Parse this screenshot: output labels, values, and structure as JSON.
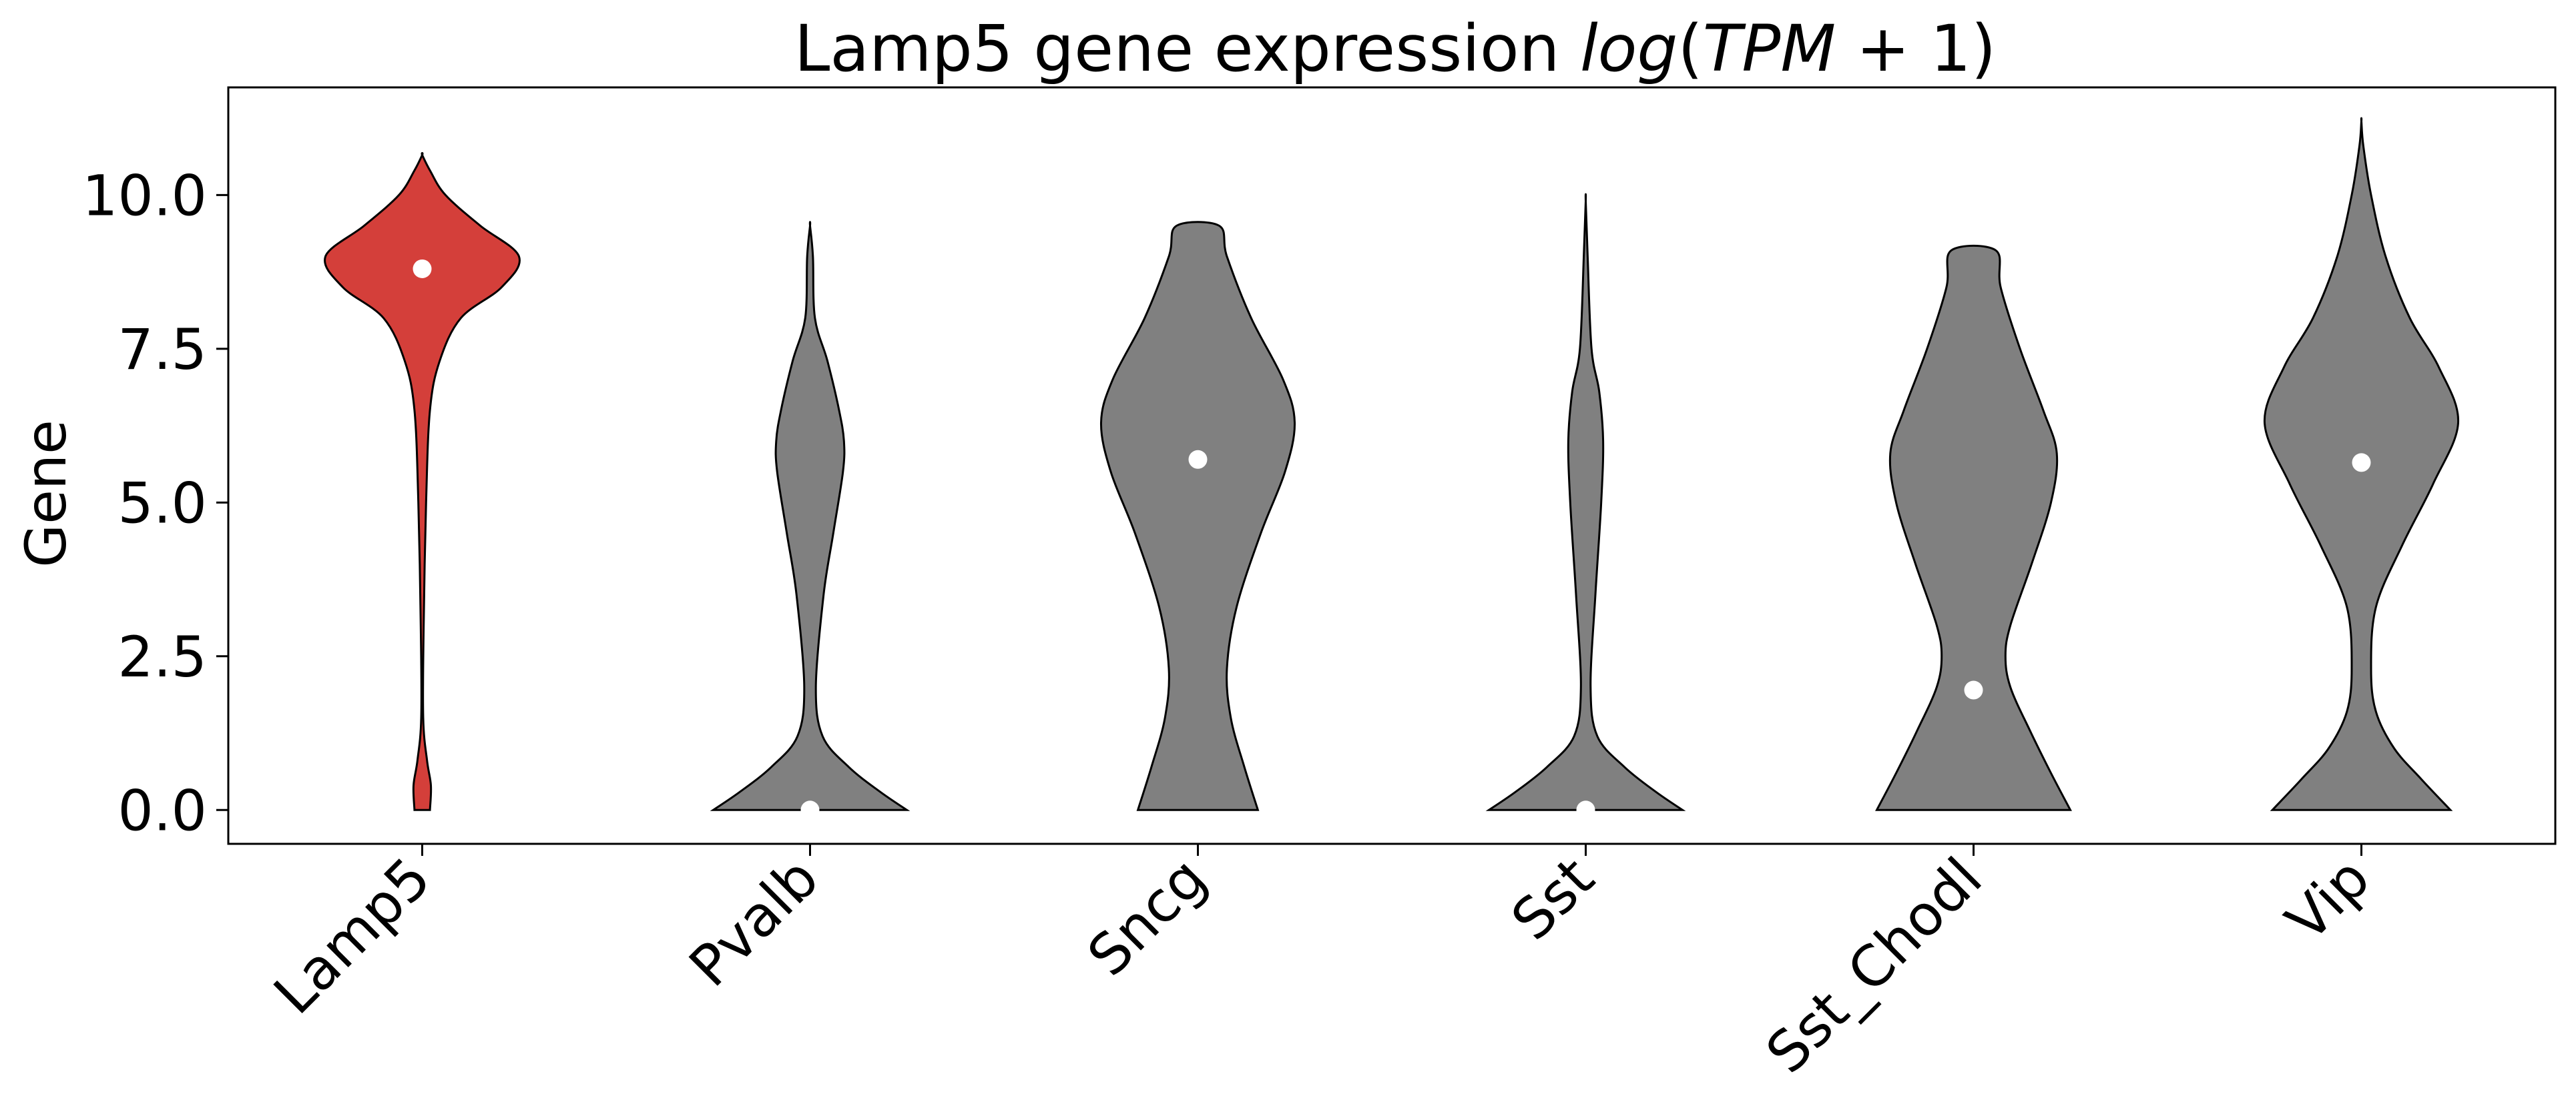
{
  "chart_data": {
    "type": "violin",
    "title": {
      "prefix": "Lamp5 gene expression ",
      "math": [
        "log",
        "(",
        "TPM",
        " + 1)"
      ]
    },
    "xlabel": "",
    "ylabel": "Gene",
    "ylim": [
      -0.55,
      11.75
    ],
    "yticks": [
      "0.0",
      "2.5",
      "5.0",
      "7.5",
      "10.0"
    ],
    "ytick_values": [
      0,
      2.5,
      5,
      7.5,
      10
    ],
    "categories": [
      "Lamp5",
      "Pvalb",
      "Sncg",
      "Sst",
      "Sst_Chodl",
      "Vip"
    ],
    "highlight_category": "Lamp5",
    "colors": {
      "highlight": "#d43f3a",
      "default": "#808080",
      "median": "#ffffff",
      "edge": "#000000"
    },
    "medians": [
      8.8,
      0.0,
      5.7,
      0.0,
      1.95,
      5.65
    ],
    "violins": [
      {
        "name": "Lamp5",
        "profile": [
          [
            0,
            0.08
          ],
          [
            0.4,
            0.09
          ],
          [
            0.8,
            0.05
          ],
          [
            1.5,
            0.01
          ],
          [
            3,
            0.015
          ],
          [
            5,
            0.04
          ],
          [
            6.5,
            0.08
          ],
          [
            7.3,
            0.18
          ],
          [
            8.0,
            0.4
          ],
          [
            8.5,
            0.82
          ],
          [
            9.0,
            1.0
          ],
          [
            9.5,
            0.6
          ],
          [
            10.0,
            0.24
          ],
          [
            10.4,
            0.08
          ],
          [
            10.65,
            0.0
          ]
        ]
      },
      {
        "name": "Pvalb",
        "profile": [
          [
            0,
            1.0
          ],
          [
            0.3,
            0.72
          ],
          [
            0.7,
            0.4
          ],
          [
            1.2,
            0.13
          ],
          [
            2,
            0.06
          ],
          [
            3.5,
            0.14
          ],
          [
            4.5,
            0.24
          ],
          [
            5.5,
            0.34
          ],
          [
            6.0,
            0.35
          ],
          [
            6.5,
            0.3
          ],
          [
            7.3,
            0.18
          ],
          [
            8.0,
            0.05
          ],
          [
            9.0,
            0.03
          ],
          [
            9.5,
            0.0
          ]
        ]
      },
      {
        "name": "Sncg",
        "profile": [
          [
            0,
            0.62
          ],
          [
            0.7,
            0.48
          ],
          [
            1.5,
            0.34
          ],
          [
            2.3,
            0.3
          ],
          [
            3.3,
            0.4
          ],
          [
            4.5,
            0.65
          ],
          [
            5.5,
            0.9
          ],
          [
            6.3,
            1.0
          ],
          [
            7.0,
            0.88
          ],
          [
            8.0,
            0.55
          ],
          [
            9.0,
            0.3
          ],
          [
            9.5,
            0.22
          ]
        ]
      },
      {
        "name": "Sst",
        "profile": [
          [
            0,
            1.0
          ],
          [
            0.3,
            0.72
          ],
          [
            0.7,
            0.4
          ],
          [
            1.2,
            0.12
          ],
          [
            2,
            0.05
          ],
          [
            3.5,
            0.1
          ],
          [
            5,
            0.16
          ],
          [
            6,
            0.18
          ],
          [
            6.8,
            0.14
          ],
          [
            7.5,
            0.06
          ],
          [
            9,
            0.02
          ],
          [
            9.9,
            0.0
          ]
        ]
      },
      {
        "name": "Sst_Chodl",
        "profile": [
          [
            0,
            1.0
          ],
          [
            0.6,
            0.8
          ],
          [
            1.3,
            0.58
          ],
          [
            2.0,
            0.38
          ],
          [
            2.5,
            0.33
          ],
          [
            3.0,
            0.38
          ],
          [
            4.0,
            0.6
          ],
          [
            5.0,
            0.8
          ],
          [
            5.8,
            0.86
          ],
          [
            6.5,
            0.72
          ],
          [
            7.5,
            0.48
          ],
          [
            8.5,
            0.28
          ],
          [
            9.1,
            0.23
          ]
        ]
      },
      {
        "name": "Vip",
        "profile": [
          [
            0,
            0.92
          ],
          [
            0.5,
            0.62
          ],
          [
            1.0,
            0.34
          ],
          [
            1.6,
            0.15
          ],
          [
            2.3,
            0.1
          ],
          [
            3.3,
            0.15
          ],
          [
            4.3,
            0.42
          ],
          [
            5.3,
            0.74
          ],
          [
            6.3,
            1.0
          ],
          [
            7.2,
            0.8
          ],
          [
            8.0,
            0.5
          ],
          [
            9.0,
            0.25
          ],
          [
            10.0,
            0.1
          ],
          [
            10.8,
            0.02
          ],
          [
            11.2,
            0.0
          ]
        ]
      }
    ]
  }
}
